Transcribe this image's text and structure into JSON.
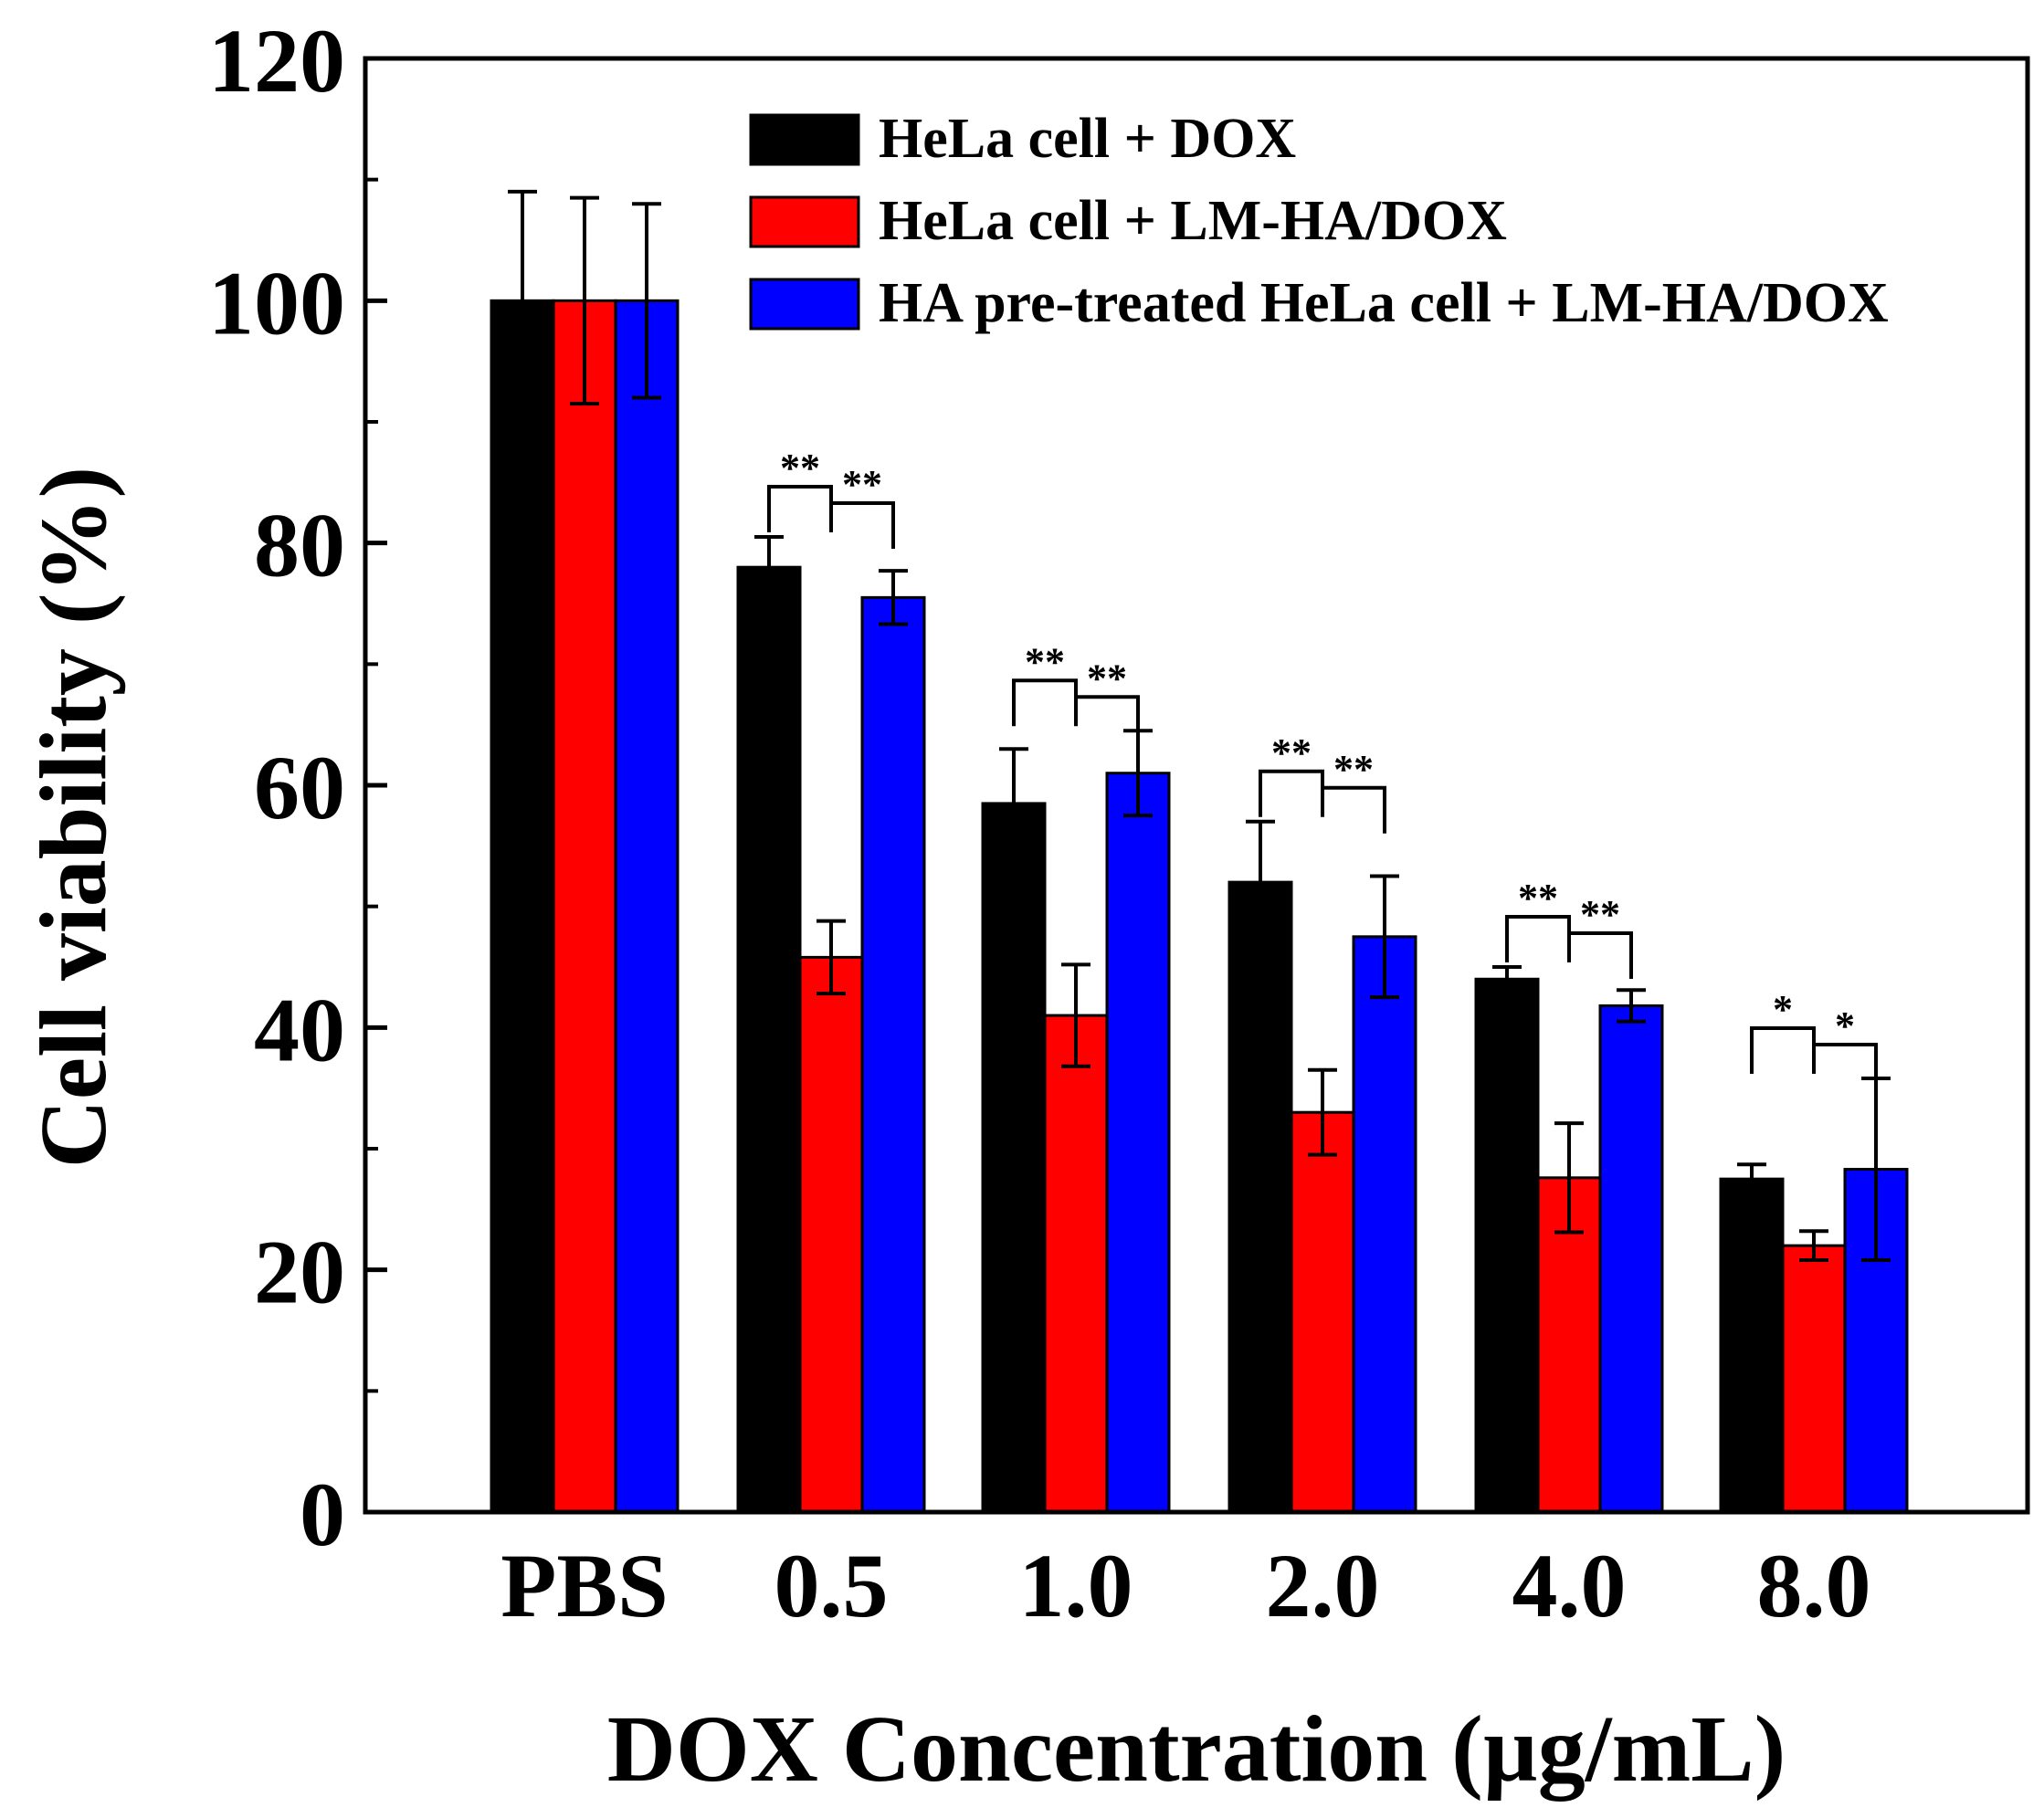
{
  "chart_data": {
    "type": "bar",
    "title": "",
    "xlabel": "DOX Concentration (µg/mL)",
    "ylabel": "Cell viability (%)",
    "categories": [
      "PBS",
      "0.5",
      "1.0",
      "2.0",
      "4.0",
      "8.0"
    ],
    "ylim": [
      0,
      120
    ],
    "yticks": [
      0,
      20,
      40,
      60,
      80,
      100,
      120
    ],
    "grid": false,
    "legend_position": "top-right",
    "series": [
      {
        "name": "HeLa cell + DOX",
        "color": "#000000",
        "values": [
          100,
          78,
          58.5,
          52,
          44,
          27.5
        ],
        "errors": [
          9,
          2.5,
          4.5,
          5,
          1,
          1.2
        ]
      },
      {
        "name": "HeLa cell + LM-HA/DOX",
        "color": "#ff0000",
        "values": [
          100,
          45.8,
          41,
          33,
          27.6,
          22
        ],
        "errors": [
          8.5,
          3,
          4.2,
          3.5,
          4.5,
          1.2
        ]
      },
      {
        "name": "HA pre-treated HeLa cell + LM-HA/DOX",
        "color": "#0000ff",
        "values": [
          100,
          75.5,
          61,
          47.5,
          41.8,
          28.3
        ],
        "errors": [
          8,
          2.2,
          3.5,
          5,
          1.3,
          7.5
        ]
      }
    ],
    "annotations": [
      {
        "category": "0.5",
        "left": "**",
        "right": "**"
      },
      {
        "category": "1.0",
        "left": "**",
        "right": "**"
      },
      {
        "category": "2.0",
        "left": "**",
        "right": "**"
      },
      {
        "category": "4.0",
        "left": "**",
        "right": "**"
      },
      {
        "category": "8.0",
        "left": "*",
        "right": "*"
      }
    ]
  }
}
